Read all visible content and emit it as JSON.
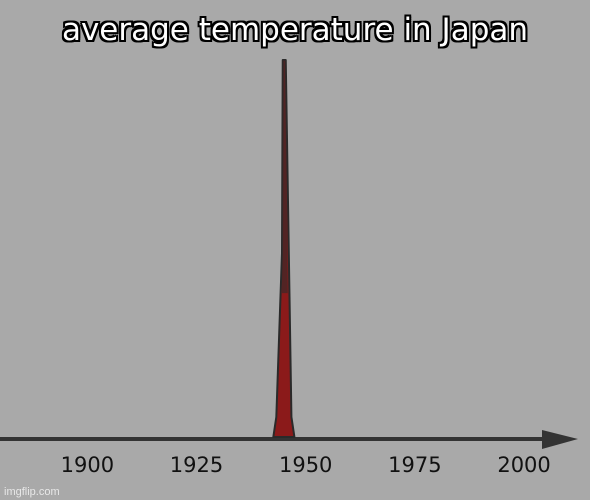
{
  "chart_data": {
    "type": "line",
    "title": "average temperature in Japan",
    "xlabel": "",
    "ylabel": "",
    "x_ticks": [
      "1900",
      "1925",
      "1950",
      "1975",
      "2000"
    ],
    "xlim": [
      1880,
      2008
    ],
    "ylim": [
      0,
      100
    ],
    "grid": false,
    "legend": "none",
    "series": [
      {
        "x": [
          1880,
          1943.5,
          1944.8,
          1945.2,
          1946.5,
          2008
        ],
        "y": [
          0,
          1,
          70,
          100,
          1,
          0
        ],
        "color": "#8b1a1a"
      }
    ]
  },
  "watermark": "imgflip.com",
  "colors": {
    "background": "#a9a9a9",
    "axis": "#333333",
    "spike": "#8b1a1a"
  }
}
